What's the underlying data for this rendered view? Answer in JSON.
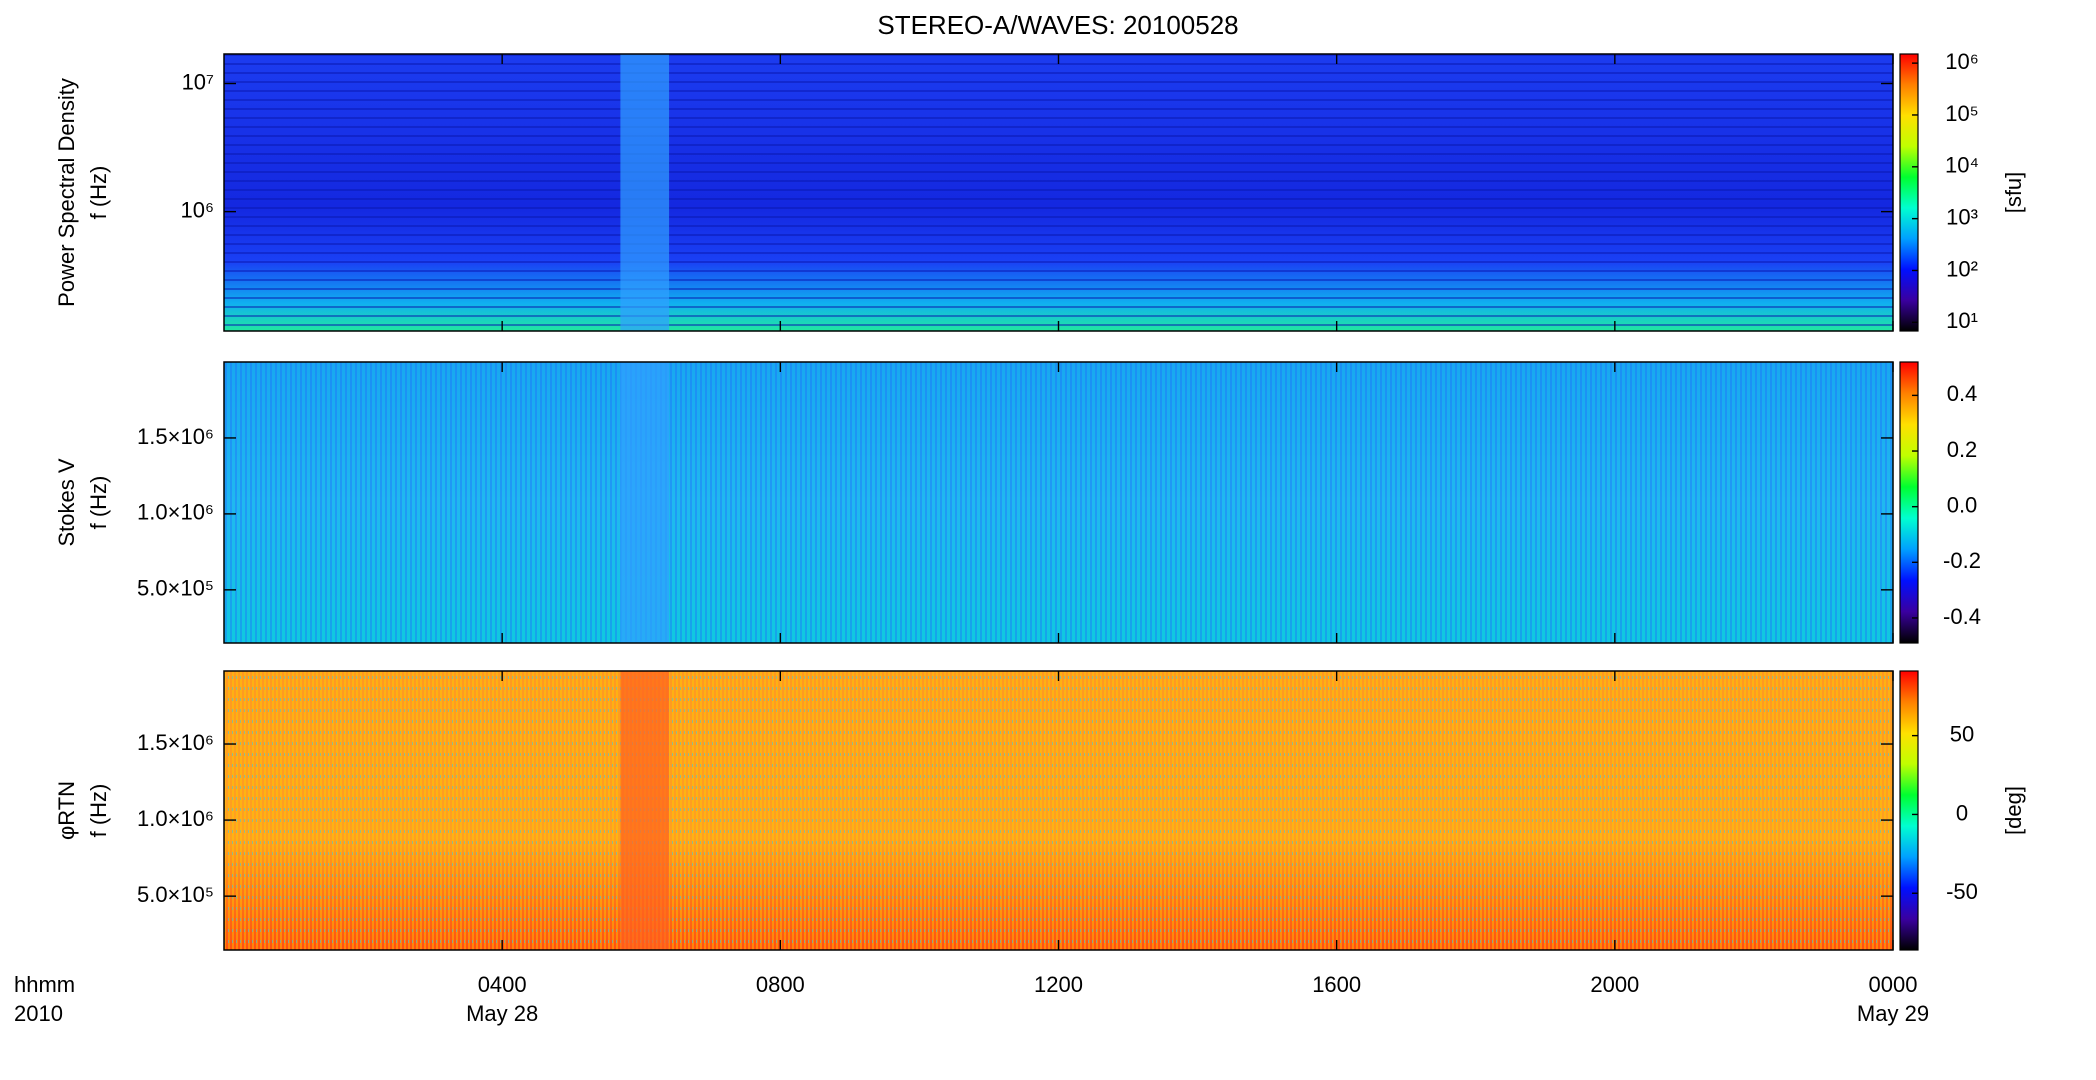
{
  "chart_data": [
    {
      "type": "heatmap",
      "title": "STEREO-A/WAVES: 20100528",
      "ylabel": [
        "Power Spectral Density",
        "f (Hz)"
      ],
      "ylog": true,
      "ylim": [
        117000,
        17000000
      ],
      "yticks": [
        {
          "value": 1000000,
          "label": "10⁶"
        },
        {
          "value": 10000000,
          "label": "10⁷"
        }
      ],
      "colorbar": {
        "label": "[sfu]",
        "log": true,
        "lim": [
          6.8,
          1500000
        ],
        "ticks": [
          {
            "value": 10,
            "label": "10¹"
          },
          {
            "value": 100,
            "label": "10²"
          },
          {
            "value": 1000,
            "label": "10³"
          },
          {
            "value": 10000,
            "label": "10⁴"
          },
          {
            "value": 100000,
            "label": "10⁵"
          },
          {
            "value": 1000000,
            "label": "10⁶"
          }
        ]
      },
      "colormap": [
        "#000000",
        "#3a00a0",
        "#0010ff",
        "#00a0ff",
        "#00ffd0",
        "#00ff30",
        "#c0ff00",
        "#ffe000",
        "#ff8000",
        "#ff0000"
      ]
    },
    {
      "type": "heatmap",
      "ylabel": [
        "Stokes V",
        "f (Hz)"
      ],
      "ylog": false,
      "ylim": [
        150000,
        2000000
      ],
      "yticks": [
        {
          "value": 500000,
          "label": "5.0×10⁵"
        },
        {
          "value": 1000000,
          "label": "1.0×10⁶"
        },
        {
          "value": 1500000,
          "label": "1.5×10⁶"
        }
      ],
      "colorbar": {
        "log": false,
        "lim": [
          -0.49,
          0.52
        ],
        "ticks": [
          {
            "value": -0.4,
            "label": "-0.4"
          },
          {
            "value": -0.2,
            "label": "-0.2"
          },
          {
            "value": 0,
            "label": "0.0"
          },
          {
            "value": 0.2,
            "label": "0.2"
          },
          {
            "value": 0.4,
            "label": "0.4"
          }
        ]
      },
      "colormap": [
        "#000000",
        "#3a00a0",
        "#0010ff",
        "#00a0ff",
        "#00ffd0",
        "#00ff30",
        "#c0ff00",
        "#ffe000",
        "#ff8000",
        "#ff0000"
      ]
    },
    {
      "type": "heatmap",
      "ylabel": [
        "φRTN",
        "f (Hz)"
      ],
      "ylog": false,
      "ylim": [
        146000,
        1980000
      ],
      "yticks": [
        {
          "value": 500000,
          "label": "5.0×10⁵"
        },
        {
          "value": 1000000,
          "label": "1.0×10⁶"
        },
        {
          "value": 1500000,
          "label": "1.5×10⁶"
        }
      ],
      "colorbar": {
        "label": "[deg]",
        "log": false,
        "lim": [
          -86,
          91
        ],
        "ticks": [
          -50,
          0,
          50
        ]
      },
      "colormap": [
        "#000000",
        "#3a00a0",
        "#0010ff",
        "#00a0ff",
        "#00ffd0",
        "#00ff30",
        "#c0ff00",
        "#ffe000",
        "#ff8000",
        "#ff0000"
      ],
      "xlabel": [
        "hhmm",
        "2010"
      ],
      "xlim": [
        0,
        24
      ],
      "xticks": [
        {
          "value": 4,
          "label": "0400"
        },
        {
          "value": 8,
          "label": "0800"
        },
        {
          "value": 12,
          "label": "1200"
        },
        {
          "value": 16,
          "label": "1600"
        },
        {
          "value": 20,
          "label": "2000"
        },
        {
          "value": 24,
          "label": "0000"
        }
      ],
      "xdates": [
        {
          "value": 4,
          "label": "May 28"
        },
        {
          "value": 24,
          "label": "May 29"
        }
      ]
    }
  ]
}
